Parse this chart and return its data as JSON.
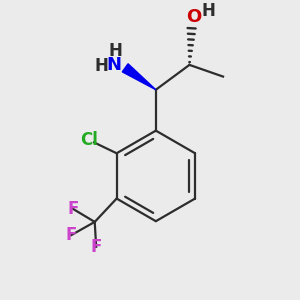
{
  "background_color": "#ebebeb",
  "bond_color": "#2d2d2d",
  "line_width": 1.6,
  "colors": {
    "N": "#0000ee",
    "O": "#cc0000",
    "Cl": "#22aa22",
    "F": "#cc44cc",
    "H": "#2d2d2d",
    "C": "#2d2d2d"
  },
  "font_size_atom": 12,
  "font_size_small": 10
}
